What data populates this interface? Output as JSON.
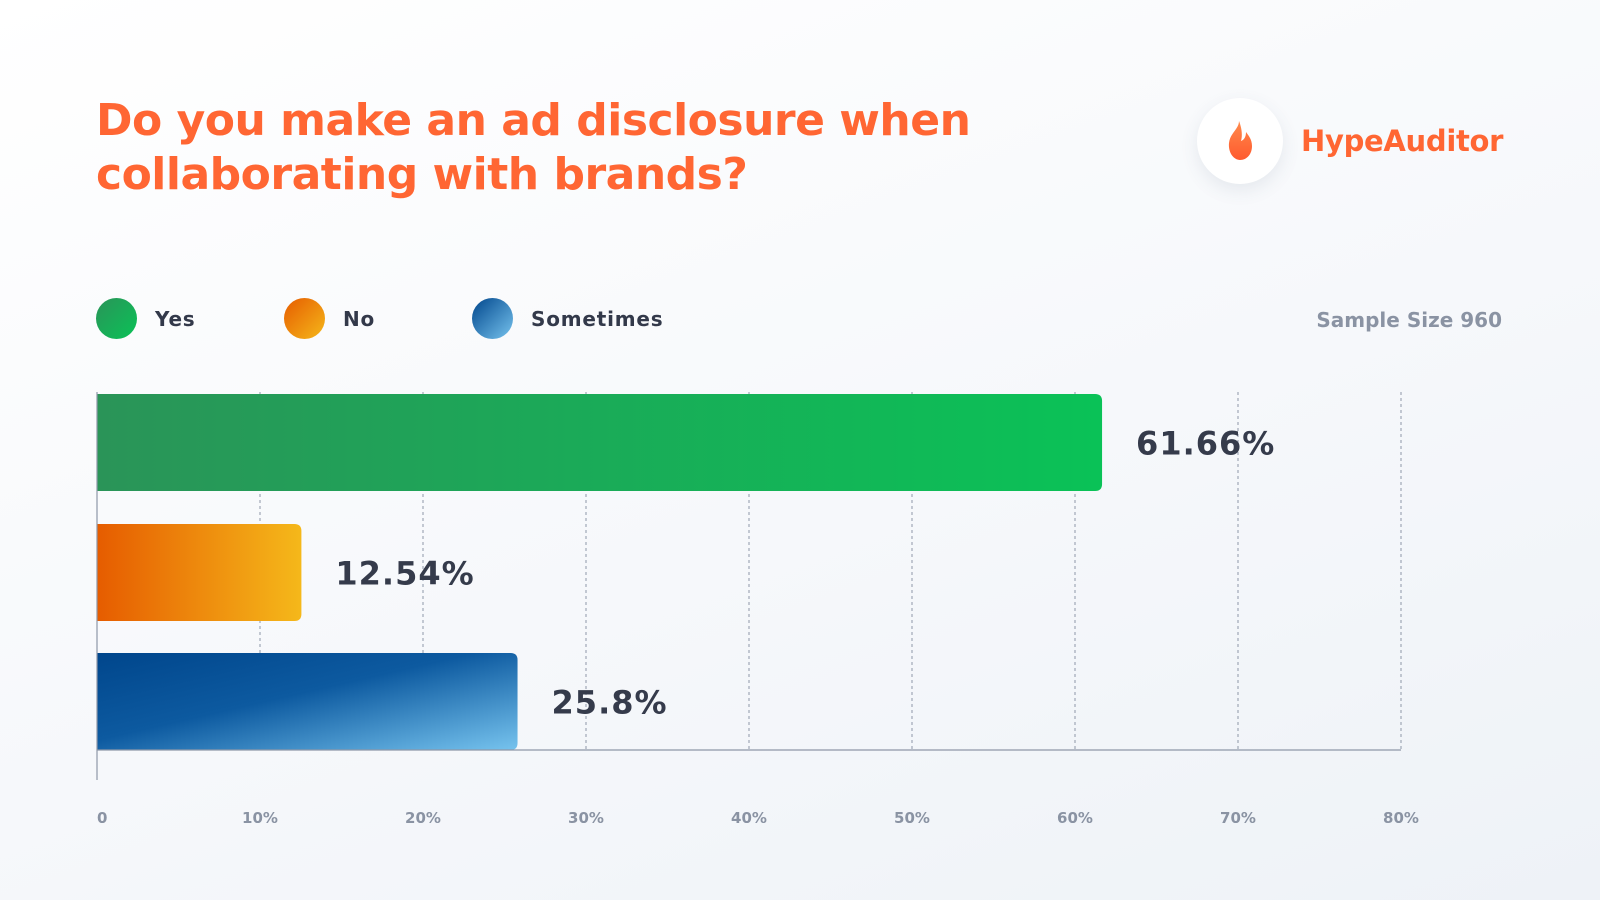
{
  "title": "Do you make an ad disclosure when collaborating with brands?",
  "brand": {
    "name": "HypeAuditor",
    "logo_icon": "flame-icon",
    "accent_color": "#ff6633"
  },
  "legend": [
    {
      "label": "Yes",
      "color_start": "#2a9458",
      "color_end": "#0ac257"
    },
    {
      "label": "No",
      "color_start": "#e65c00",
      "color_end": "#f5b81a"
    },
    {
      "label": "Sometimes",
      "color_start": "#00468c",
      "color_end": "#76c3ee"
    }
  ],
  "sample_size": "Sample Size 960",
  "chart_data": {
    "type": "bar",
    "orientation": "horizontal",
    "categories": [
      "Yes",
      "No",
      "Sometimes"
    ],
    "values": [
      61.66,
      12.54,
      25.8
    ],
    "value_labels": [
      "61.66%",
      "12.54%",
      "25.8%"
    ],
    "x_ticks": [
      "0",
      "10%",
      "20%",
      "30%",
      "40%",
      "50%",
      "60%",
      "70%",
      "80%"
    ],
    "xlim": [
      0,
      80
    ],
    "grid": "vertical dashed",
    "legend_placement": "top-left"
  }
}
